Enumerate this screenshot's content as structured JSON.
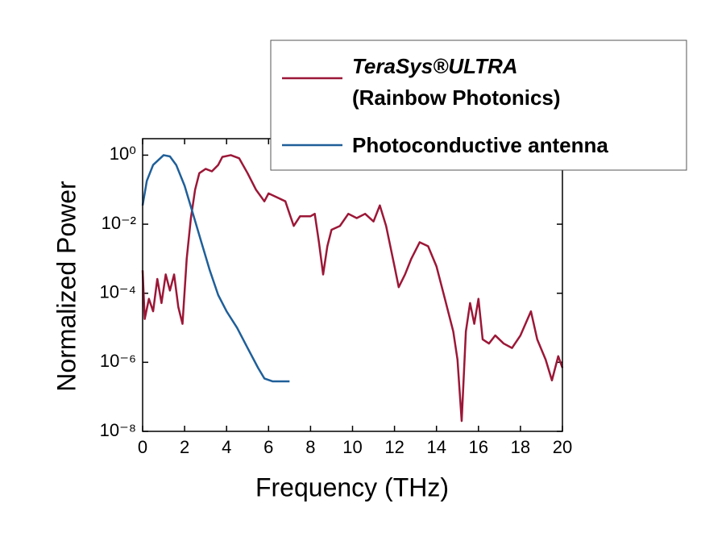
{
  "chart_data": {
    "type": "line",
    "xlabel": "Frequency (THz)",
    "ylabel": "Normalized Power",
    "log_y": true,
    "xlim": [
      0,
      20
    ],
    "xticks": [
      0,
      2,
      4,
      6,
      8,
      10,
      12,
      14,
      16,
      18,
      20
    ],
    "ylim": [
      1e-08,
      3
    ],
    "yticks": [
      {
        "value": 1e-08,
        "label": "10⁻⁸"
      },
      {
        "value": 1e-06,
        "label": "10⁻⁶"
      },
      {
        "value": 0.0001,
        "label": "10⁻⁴"
      },
      {
        "value": 0.01,
        "label": "10⁻²"
      },
      {
        "value": 1,
        "label": "10⁰"
      }
    ],
    "legend": "upper right",
    "series": [
      {
        "name": "TeraSys®ULTRA (Rainbow Photonics)",
        "color": "#9c1737",
        "x": [
          0.0,
          0.1,
          0.3,
          0.5,
          0.7,
          0.9,
          1.1,
          1.3,
          1.5,
          1.7,
          1.9,
          2.1,
          2.3,
          2.5,
          2.7,
          3.0,
          3.3,
          3.6,
          3.8,
          4.2,
          4.6,
          5.0,
          5.4,
          5.8,
          6.0,
          6.4,
          6.8,
          7.0,
          7.2,
          7.5,
          8.0,
          8.2,
          8.4,
          8.6,
          8.8,
          9.0,
          9.4,
          9.8,
          10.2,
          10.6,
          11.0,
          11.3,
          11.6,
          12.0,
          12.2,
          12.5,
          12.8,
          13.2,
          13.6,
          14.0,
          14.4,
          14.8,
          15.0,
          15.2,
          15.4,
          15.6,
          15.8,
          16.0,
          16.2,
          16.5,
          16.8,
          17.2,
          17.6,
          18.0,
          18.5,
          18.8,
          19.2,
          19.5,
          19.8,
          20.0
        ],
        "values": [
          0.00046,
          1.8e-05,
          6.9e-05,
          3e-05,
          0.00026,
          5.2e-05,
          0.00035,
          0.00012,
          0.00035,
          4e-05,
          1.3e-05,
          0.001,
          0.015,
          0.1,
          0.3,
          0.4,
          0.34,
          0.52,
          0.89,
          1.0,
          0.81,
          0.3,
          0.1,
          0.046,
          0.078,
          0.06,
          0.046,
          0.02,
          0.0089,
          0.017,
          0.017,
          0.02,
          0.003,
          0.00035,
          0.0023,
          0.0069,
          0.0089,
          0.02,
          0.015,
          0.02,
          0.012,
          0.035,
          0.0089,
          0.0006,
          0.00015,
          0.00035,
          0.001,
          0.003,
          0.0023,
          0.0006,
          6.9e-05,
          7.8e-06,
          1.2e-06,
          2e-08,
          7.8e-06,
          5.2e-05,
          1.3e-05,
          6.9e-05,
          4.6e-06,
          3.5e-06,
          6e-06,
          3.5e-06,
          2.6e-06,
          6e-06,
          3e-05,
          4.6e-06,
          1.2e-06,
          3e-07,
          1.5e-06,
          6.9e-07
        ]
      },
      {
        "name": "Photoconductive antenna",
        "color": "#1f5f99",
        "x": [
          0.0,
          0.2,
          0.5,
          1.0,
          1.3,
          1.6,
          2.0,
          2.4,
          2.8,
          3.2,
          3.6,
          4.0,
          4.5,
          5.0,
          5.5,
          5.8,
          6.2,
          7.0
        ],
        "values": [
          0.035,
          0.18,
          0.52,
          1.0,
          0.92,
          0.52,
          0.13,
          0.02,
          0.003,
          0.00046,
          8.9e-05,
          3e-05,
          1e-05,
          2.6e-06,
          6.9e-07,
          3.4e-07,
          2.8e-07,
          2.8e-07
        ]
      }
    ]
  }
}
